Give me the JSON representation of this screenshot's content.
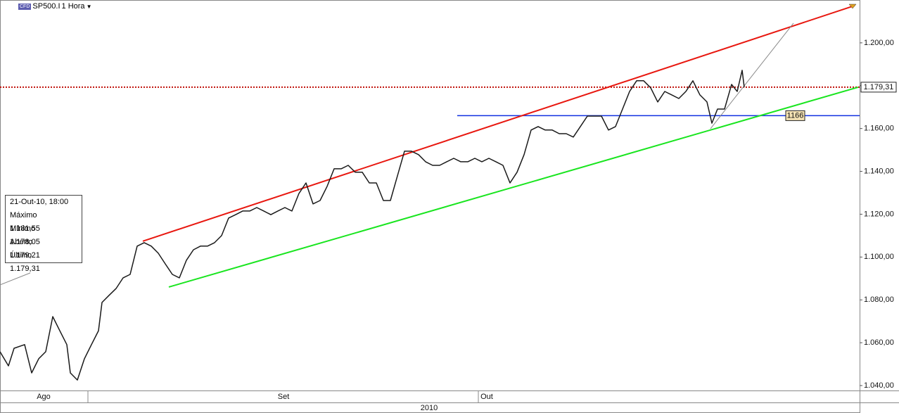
{
  "header": {
    "symbol": "SP500.I",
    "timeframe": "1 Hora",
    "icon": "CFD"
  },
  "info_box": {
    "date": "21-Out-10, 18:00",
    "rows": [
      [
        "Máximo",
        "1.181,55"
      ],
      [
        "Mínimo",
        "1.178,05"
      ],
      [
        "Aberto",
        "1.179,21"
      ],
      [
        "Último",
        "1.179,31"
      ]
    ]
  },
  "chart_data": {
    "type": "line",
    "xlim": [
      0,
      1222
    ],
    "ylim": [
      1.0377,
      1.22
    ],
    "yticks": [
      {
        "value": 1.04,
        "label": "1.040,00"
      },
      {
        "value": 1.06,
        "label": "1.060,00"
      },
      {
        "value": 1.08,
        "label": "1.080,00"
      },
      {
        "value": 1.1,
        "label": "1.100,00"
      },
      {
        "value": 1.12,
        "label": "1.120,00"
      },
      {
        "value": 1.14,
        "label": "1.140,00"
      },
      {
        "value": 1.16,
        "label": "1.160,00"
      },
      {
        "value": 1.18,
        "label": "1.180,00"
      },
      {
        "value": 1.2,
        "label": "1.200,00"
      }
    ],
    "xticks": [
      125,
      680
    ],
    "x_labels": [
      {
        "value": 62,
        "label": "Ago"
      },
      {
        "value": 403,
        "label": "Set"
      },
      {
        "value": 692,
        "label": "Out"
      }
    ],
    "x_group_label": "2010",
    "series": [
      {
        "name": "SP500.I",
        "color": "#1a1a1a",
        "x": [
          0,
          12,
          20,
          35,
          45,
          55,
          65,
          75,
          85,
          95,
          100,
          110,
          120,
          130,
          140,
          145,
          155,
          165,
          175,
          185,
          195,
          205,
          215,
          225,
          235,
          245,
          255,
          265,
          275,
          285,
          295,
          305,
          315,
          325,
          335,
          345,
          355,
          365,
          375,
          385,
          395,
          405,
          415,
          425,
          435,
          445,
          455,
          465,
          475,
          485,
          495,
          505,
          515,
          525,
          535,
          545,
          555,
          565,
          575,
          585,
          595,
          605,
          615,
          625,
          635,
          645,
          655,
          665,
          675,
          685,
          695,
          705,
          715,
          725,
          735,
          745,
          755,
          765,
          775,
          785,
          795,
          805,
          815,
          825,
          835,
          845,
          855,
          865,
          875,
          885,
          895,
          905,
          915,
          925,
          935,
          945,
          955,
          965,
          975,
          985,
          995,
          1005,
          1012,
          1020,
          1030,
          1040,
          1048,
          1055,
          1058
        ],
        "y": [
          1.0558,
          1.0492,
          1.0574,
          1.0591,
          1.0459,
          1.0525,
          1.0558,
          1.0722,
          1.0656,
          1.0591,
          1.0459,
          1.0426,
          1.0525,
          1.0591,
          1.0656,
          1.0788,
          1.0821,
          1.0853,
          1.0903,
          1.0919,
          1.1051,
          1.1067,
          1.1051,
          1.1018,
          1.0968,
          1.0919,
          1.0903,
          1.0985,
          1.1034,
          1.1051,
          1.1051,
          1.1067,
          1.11,
          1.1182,
          1.1198,
          1.1215,
          1.1215,
          1.1231,
          1.1215,
          1.1198,
          1.1215,
          1.1231,
          1.1215,
          1.1297,
          1.1346,
          1.1248,
          1.1264,
          1.133,
          1.1412,
          1.1412,
          1.1428,
          1.1396,
          1.1396,
          1.1346,
          1.1346,
          1.1264,
          1.1264,
          1.1379,
          1.1494,
          1.1494,
          1.1478,
          1.1445,
          1.1428,
          1.1428,
          1.1445,
          1.1461,
          1.1445,
          1.1445,
          1.1461,
          1.1445,
          1.1461,
          1.1445,
          1.1428,
          1.1346,
          1.1396,
          1.1478,
          1.1593,
          1.1609,
          1.1593,
          1.1593,
          1.1576,
          1.1576,
          1.156,
          1.1609,
          1.1658,
          1.1658,
          1.1658,
          1.1593,
          1.1609,
          1.1691,
          1.1773,
          1.1823,
          1.1823,
          1.179,
          1.1724,
          1.1773,
          1.1757,
          1.174,
          1.1773,
          1.1823,
          1.1757,
          1.1724,
          1.1625,
          1.1691,
          1.1691,
          1.1806,
          1.1773,
          1.1872,
          1.1793
        ]
      }
    ],
    "lines": [
      {
        "color": "#e8170f",
        "x": [
          203,
          1215
        ],
        "y": [
          1.1074,
          1.2174
        ]
      },
      {
        "color": "#19e51f",
        "x": [
          240,
          1220
        ],
        "y": [
          1.086,
          1.1793
        ]
      },
      {
        "color": "#8a8a8a",
        "x": [
          1010,
          1128
        ],
        "y": [
          1.1599,
          1.2092
        ]
      },
      {
        "color": "#8a8a8a",
        "x": [
          0,
          43
        ],
        "y": [
          1.087,
          1.0926
        ]
      }
    ],
    "levels": [
      {
        "value": 1.17931,
        "label": "1.179,31",
        "color": "#c0100a",
        "dashed": true,
        "from": 0
      },
      {
        "value": 1.166,
        "label": "1166",
        "color": "#1030e0",
        "dashed": false,
        "from": 650
      }
    ]
  }
}
